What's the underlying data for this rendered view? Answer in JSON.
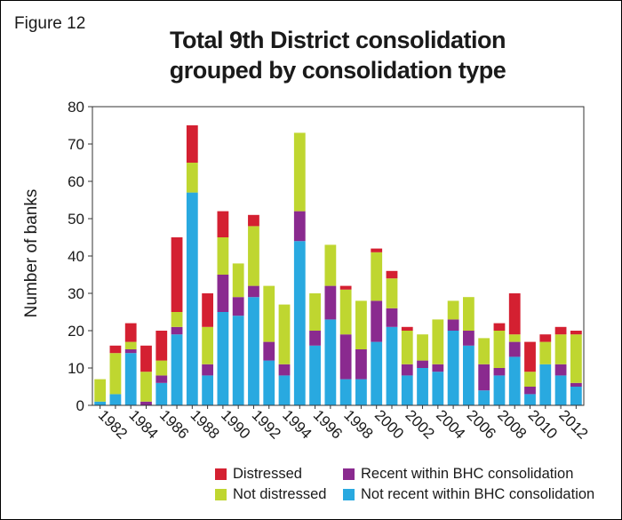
{
  "figure_label": "Figure 12",
  "colors": {
    "distressed": "#d42031",
    "not_distressed": "#bfd630",
    "recent_bhc": "#8a2a8f",
    "not_recent_bhc": "#29a9e0"
  },
  "chart_data": {
    "type": "bar",
    "stacked": true,
    "title": "Total 9th District consolidation grouped by consolidation type",
    "title_lines": [
      "Total 9th District consolidation",
      "grouped by consolidation type"
    ],
    "ylabel": "Number of banks",
    "xlabel": "",
    "ylim": [
      0,
      80
    ],
    "yticks": [
      0,
      10,
      20,
      30,
      40,
      50,
      60,
      70,
      80
    ],
    "grid": false,
    "legend_position": "bottom",
    "categories": [
      "1982",
      "1983",
      "1984",
      "1985",
      "1986",
      "1987",
      "1988",
      "1989",
      "1990",
      "1991",
      "1992",
      "1993",
      "1994",
      "1995",
      "1996",
      "1997",
      "1998",
      "1999",
      "2000",
      "2001",
      "2002",
      "2003",
      "2004",
      "2005",
      "2006",
      "2007",
      "2008",
      "2009",
      "2010",
      "2011",
      "2012",
      "2013"
    ],
    "xtick_labels": [
      "1982",
      "1984",
      "1986",
      "1988",
      "1990",
      "1992",
      "1994",
      "1996",
      "1998",
      "2000",
      "2002",
      "2004",
      "2006",
      "2008",
      "2010",
      "2012"
    ],
    "series": [
      {
        "name": "Not recent within BHC consolidation",
        "key": "not_recent_bhc",
        "values": [
          1,
          3,
          14,
          0,
          6,
          19,
          57,
          8,
          25,
          24,
          29,
          12,
          8,
          44,
          16,
          23,
          7,
          7,
          17,
          21,
          8,
          10,
          9,
          20,
          16,
          4,
          8,
          13,
          3,
          11,
          8,
          5
        ]
      },
      {
        "name": "Recent within BHC consolidation",
        "key": "recent_bhc",
        "values": [
          0,
          0,
          1,
          1,
          2,
          2,
          0,
          3,
          10,
          5,
          3,
          5,
          3,
          8,
          4,
          9,
          12,
          8,
          11,
          5,
          3,
          2,
          2,
          3,
          4,
          7,
          2,
          4,
          2,
          0,
          3,
          1
        ]
      },
      {
        "name": "Not distressed",
        "key": "not_distressed",
        "values": [
          6,
          11,
          2,
          8,
          4,
          4,
          8,
          10,
          10,
          9,
          16,
          15,
          16,
          21,
          10,
          11,
          12,
          13,
          13,
          8,
          9,
          7,
          12,
          5,
          9,
          7,
          10,
          2,
          4,
          6,
          8,
          13
        ]
      },
      {
        "name": "Distressed",
        "key": "distressed",
        "values": [
          0,
          2,
          5,
          7,
          8,
          20,
          10,
          9,
          7,
          0,
          3,
          0,
          0,
          0,
          0,
          0,
          1,
          0,
          1,
          2,
          1,
          0,
          0,
          0,
          0,
          0,
          2,
          11,
          8,
          2,
          2,
          1
        ]
      }
    ],
    "legend": [
      {
        "label": "Distressed",
        "key": "distressed"
      },
      {
        "label": "Recent within BHC consolidation",
        "key": "recent_bhc"
      },
      {
        "label": "Not distressed",
        "key": "not_distressed"
      },
      {
        "label": "Not recent within BHC consolidation",
        "key": "not_recent_bhc"
      }
    ]
  }
}
